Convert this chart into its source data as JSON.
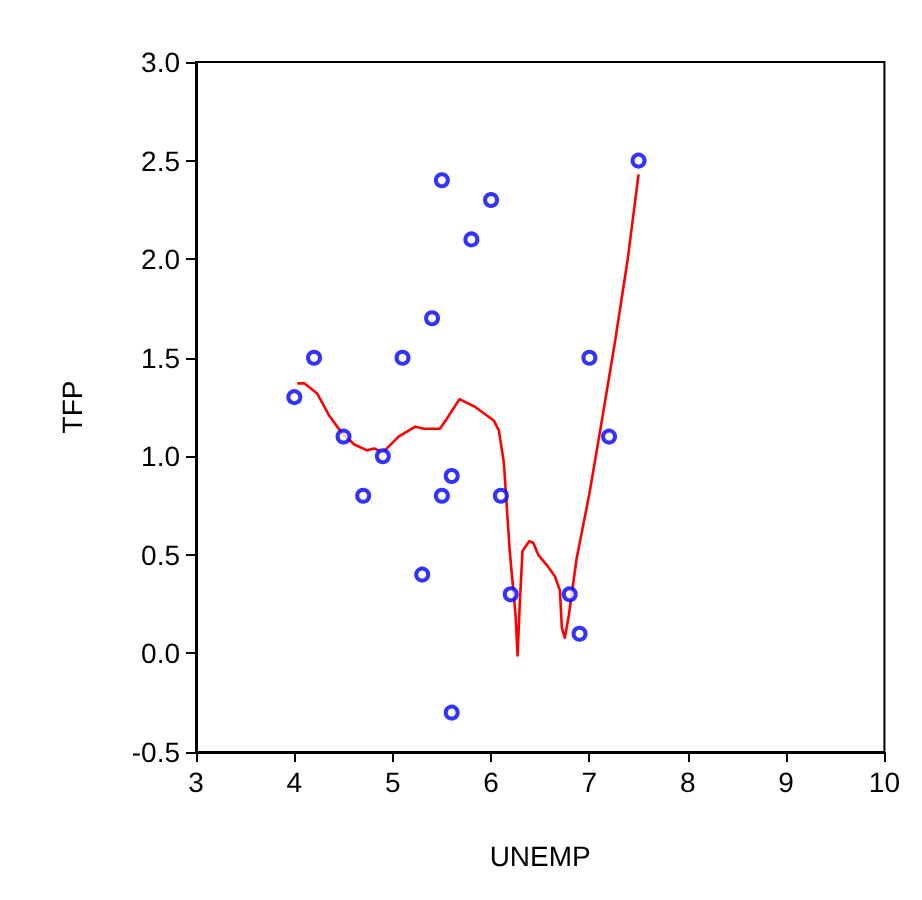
{
  "chart_data": {
    "type": "scatter",
    "xlabel": "UNEMP",
    "ylabel": "TFP",
    "xlim": [
      3,
      10
    ],
    "ylim": [
      -0.5,
      3
    ],
    "xticks": [
      3,
      4,
      5,
      6,
      7,
      8,
      9,
      10
    ],
    "yticks": [
      {
        "value": -0.5,
        "label": "-0.5"
      },
      {
        "value": 0,
        "label": "0.0"
      },
      {
        "value": 0.5,
        "label": "0.5"
      },
      {
        "value": 1,
        "label": "1.0"
      },
      {
        "value": 1.5,
        "label": "1.5"
      },
      {
        "value": 2,
        "label": "2.0"
      },
      {
        "value": 2.5,
        "label": "2.5"
      },
      {
        "value": 3,
        "label": "3.0"
      }
    ],
    "grid": false,
    "series": [
      {
        "type": "scatter",
        "color": "#0000ff",
        "marker": "circle",
        "x": [
          4.0,
          4.2,
          4.5,
          4.7,
          4.9,
          5.1,
          5.3,
          5.4,
          5.5,
          5.5,
          5.6,
          5.6,
          5.8,
          6.0,
          6.1,
          6.2,
          6.8,
          6.9,
          7.0,
          7.2,
          7.5
        ],
        "values": [
          1.3,
          1.5,
          1.1,
          0.8,
          1.0,
          1.5,
          0.4,
          1.7,
          2.4,
          0.8,
          0.9,
          -0.3,
          2.1,
          2.3,
          0.8,
          0.3,
          0.3,
          0.1,
          1.5,
          1.1,
          2.5
        ]
      },
      {
        "type": "line",
        "color": "#ff0000",
        "marker": "none",
        "line_style": "solid",
        "x": [
          4.03,
          4.1,
          4.23,
          4.35,
          4.48,
          4.61,
          4.74,
          4.81,
          4.9,
          5.06,
          5.23,
          5.32,
          5.48,
          5.55,
          5.68,
          5.84,
          6.03,
          6.08,
          6.13,
          6.19,
          6.25,
          6.27,
          6.29,
          6.32,
          6.39,
          6.43,
          6.48,
          6.58,
          6.65,
          6.7,
          6.72,
          6.75,
          6.79,
          6.87,
          7.0,
          7.13,
          7.26,
          7.39,
          7.5
        ],
        "values": [
          1.37,
          1.37,
          1.32,
          1.21,
          1.12,
          1.06,
          1.03,
          1.04,
          1.02,
          1.1,
          1.15,
          1.14,
          1.14,
          1.19,
          1.29,
          1.25,
          1.18,
          1.13,
          0.97,
          0.52,
          0.19,
          -0.01,
          0.23,
          0.52,
          0.57,
          0.56,
          0.5,
          0.44,
          0.39,
          0.32,
          0.13,
          0.08,
          0.19,
          0.48,
          0.81,
          1.19,
          1.58,
          2.0,
          2.43
        ]
      }
    ]
  }
}
